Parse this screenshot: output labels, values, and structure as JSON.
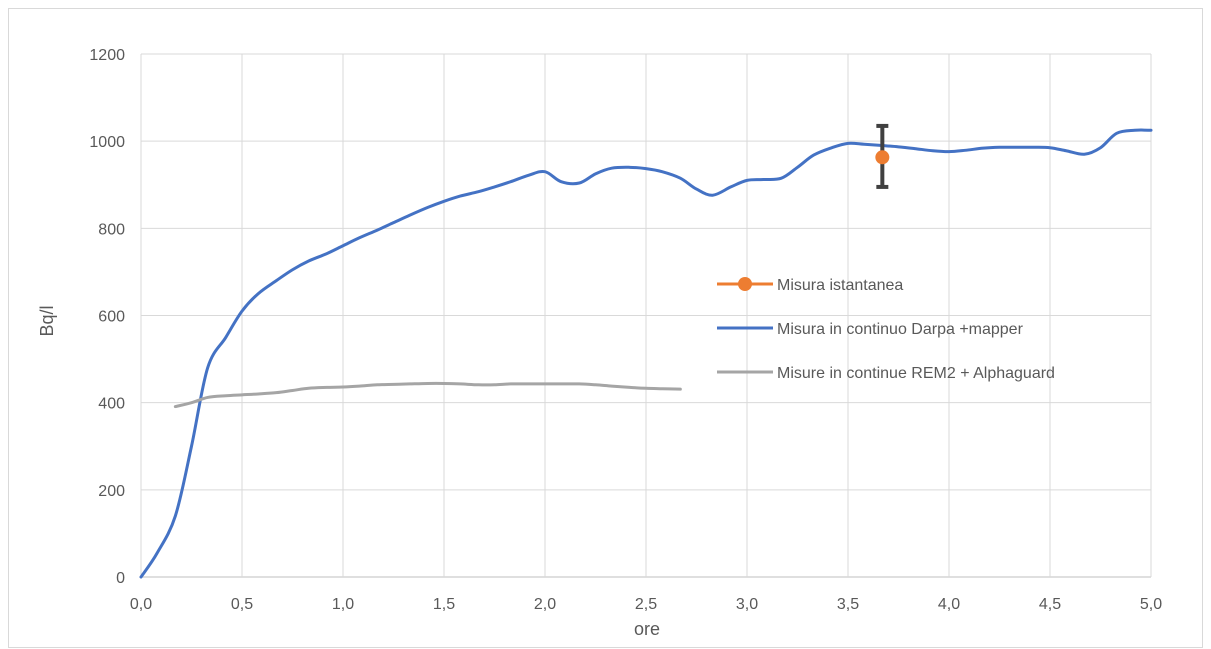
{
  "chart_data": {
    "type": "line",
    "xlabel": "ore",
    "ylabel": "Bq/l",
    "xlim": [
      0,
      5
    ],
    "ylim": [
      0,
      1200
    ],
    "x_ticks": [
      "0,0",
      "0,5",
      "1,0",
      "1,5",
      "2,0",
      "2,5",
      "3,0",
      "3,5",
      "4,0",
      "4,5",
      "5,0"
    ],
    "y_ticks": [
      "0",
      "200",
      "400",
      "600",
      "800",
      "1000",
      "1200"
    ],
    "grid": true,
    "legend_position": "right",
    "series": [
      {
        "name": "Misura istantanea",
        "kind": "point",
        "color": "#ED7D31",
        "x": [
          3.67
        ],
        "y": [
          963
        ],
        "error": [
          [
            895,
            1035
          ]
        ],
        "error_color": "#404040"
      },
      {
        "name": "Misura in continuo Darpa +mapper",
        "kind": "line",
        "color": "#4472C4",
        "x": [
          0,
          0.08,
          0.17,
          0.25,
          0.33,
          0.42,
          0.5,
          0.58,
          0.67,
          0.75,
          0.83,
          0.92,
          1.0,
          1.08,
          1.17,
          1.25,
          1.33,
          1.42,
          1.5,
          1.58,
          1.67,
          1.75,
          1.83,
          1.92,
          2.0,
          2.08,
          2.17,
          2.25,
          2.33,
          2.42,
          2.5,
          2.58,
          2.67,
          2.75,
          2.83,
          2.92,
          3.0,
          3.08,
          3.17,
          3.25,
          3.33,
          3.42,
          3.5,
          3.58,
          3.67,
          3.75,
          3.83,
          3.92,
          4.0,
          4.08,
          4.17,
          4.25,
          4.33,
          4.42,
          4.5,
          4.58,
          4.67,
          4.75,
          4.83,
          4.92,
          5.0
        ],
        "y": [
          0,
          55,
          140,
          300,
          480,
          550,
          610,
          650,
          680,
          705,
          725,
          742,
          760,
          778,
          796,
          813,
          830,
          848,
          862,
          874,
          884,
          895,
          907,
          922,
          930,
          907,
          904,
          925,
          938,
          940,
          937,
          930,
          915,
          890,
          876,
          895,
          910,
          912,
          915,
          940,
          968,
          985,
          995,
          993,
          990,
          987,
          983,
          978,
          976,
          979,
          984,
          986,
          986,
          986,
          985,
          978,
          970,
          985,
          1018,
          1025,
          1025
        ]
      },
      {
        "name": "Misure in continue REM2 + Alphaguard",
        "kind": "line",
        "color": "#A5A5A5",
        "x": [
          0.17,
          0.25,
          0.33,
          0.42,
          0.5,
          0.58,
          0.67,
          0.75,
          0.83,
          0.92,
          1.0,
          1.08,
          1.17,
          1.25,
          1.33,
          1.42,
          1.5,
          1.58,
          1.67,
          1.75,
          1.83,
          1.92,
          2.0,
          2.08,
          2.17,
          2.25,
          2.33,
          2.42,
          2.5,
          2.58,
          2.67
        ],
        "y": [
          391,
          400,
          412,
          416,
          418,
          420,
          423,
          428,
          433,
          435,
          436,
          438,
          441,
          442,
          443,
          444,
          444,
          443,
          441,
          441,
          443,
          443,
          443,
          443,
          443,
          441,
          438,
          435,
          433,
          432,
          431
        ]
      }
    ]
  }
}
